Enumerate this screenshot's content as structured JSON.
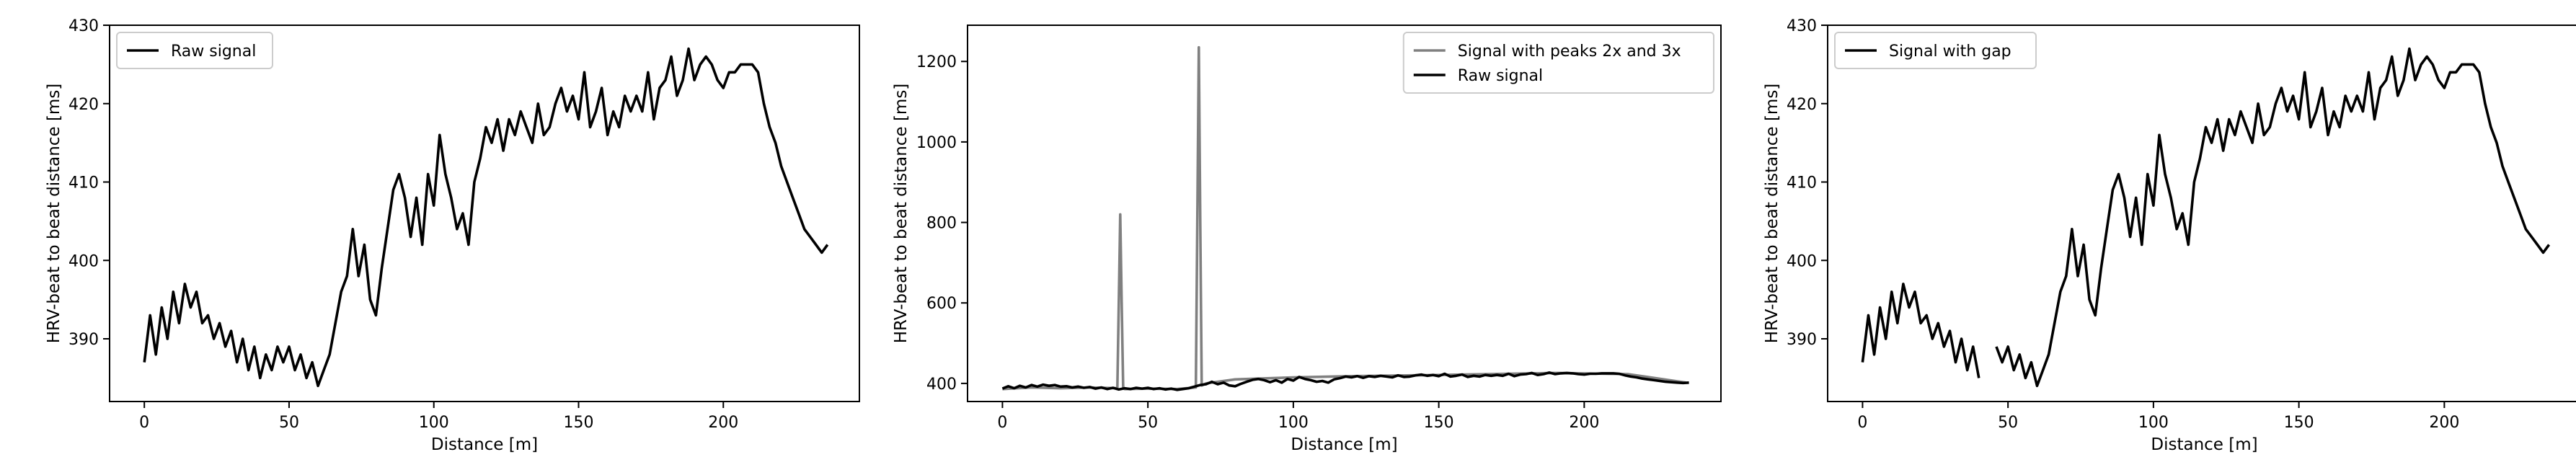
{
  "chart_data": [
    {
      "type": "line",
      "xlabel": "Distance [m]",
      "ylabel": "HRV-beat to beat distance [ms]",
      "xlim": [
        -12,
        247
      ],
      "ylim": [
        382,
        430
      ],
      "xticks": [
        0,
        50,
        100,
        150,
        200
      ],
      "xtick_labels": [
        "0",
        "50",
        "100",
        "150",
        "200"
      ],
      "yticks": [
        390,
        400,
        410,
        420,
        430
      ],
      "ytick_labels": [
        "390",
        "400",
        "410",
        "420",
        "430"
      ],
      "legend": {
        "placement": "upper left",
        "entries": [
          "Raw signal"
        ]
      },
      "series": [
        {
          "name": "Raw signal",
          "color": "#000000",
          "x": [
            0,
            2,
            4,
            6,
            8,
            10,
            12,
            14,
            16,
            18,
            20,
            22,
            24,
            26,
            28,
            30,
            32,
            34,
            36,
            38,
            40,
            42,
            44,
            46,
            48,
            50,
            52,
            54,
            56,
            58,
            60,
            62,
            64,
            66,
            68,
            70,
            72,
            74,
            76,
            78,
            80,
            82,
            84,
            86,
            88,
            90,
            92,
            94,
            96,
            98,
            100,
            102,
            104,
            106,
            108,
            110,
            112,
            114,
            116,
            118,
            120,
            122,
            124,
            126,
            128,
            130,
            132,
            134,
            136,
            138,
            140,
            142,
            144,
            146,
            148,
            150,
            152,
            154,
            156,
            158,
            160,
            162,
            164,
            166,
            168,
            170,
            172,
            174,
            176,
            178,
            180,
            182,
            184,
            186,
            188,
            190,
            192,
            194,
            196,
            198,
            200,
            202,
            204,
            206,
            208,
            210,
            212,
            214,
            216,
            218,
            220,
            222,
            224,
            226,
            228,
            230,
            232,
            234,
            236
          ],
          "values": [
            387,
            393,
            388,
            394,
            390,
            396,
            392,
            397,
            394,
            396,
            392,
            393,
            390,
            392,
            389,
            391,
            387,
            390,
            386,
            389,
            385,
            388,
            386,
            389,
            387,
            389,
            386,
            388,
            385,
            387,
            384,
            386,
            388,
            392,
            396,
            398,
            404,
            398,
            402,
            395,
            393,
            399,
            404,
            409,
            411,
            408,
            403,
            408,
            402,
            411,
            407,
            416,
            411,
            408,
            404,
            406,
            402,
            410,
            413,
            417,
            415,
            418,
            414,
            418,
            416,
            419,
            417,
            415,
            420,
            416,
            417,
            420,
            422,
            419,
            421,
            418,
            424,
            417,
            419,
            422,
            416,
            419,
            417,
            421,
            419,
            421,
            419,
            424,
            418,
            422,
            423,
            426,
            421,
            423,
            427,
            423,
            425,
            426,
            425,
            423,
            422,
            424,
            424,
            425,
            425,
            425,
            424,
            420,
            417,
            415,
            412,
            410,
            408,
            406,
            404,
            403,
            402,
            401,
            402
          ]
        }
      ]
    },
    {
      "type": "line",
      "xlabel": "Distance [m]",
      "ylabel": "HRV-beat to beat distance [ms]",
      "xlim": [
        -12,
        247
      ],
      "ylim": [
        355,
        1290
      ],
      "xticks": [
        0,
        50,
        100,
        150,
        200
      ],
      "xtick_labels": [
        "0",
        "50",
        "100",
        "150",
        "200"
      ],
      "yticks": [
        400,
        600,
        800,
        1000,
        1200
      ],
      "ytick_labels": [
        "400",
        "600",
        "800",
        "1000",
        "1200"
      ],
      "legend": {
        "placement": "upper right",
        "entries": [
          "Signal with peaks 2x and 3x",
          "Raw signal"
        ]
      },
      "series": [
        {
          "name": "Signal with peaks 2x and 3x",
          "color": "#808080",
          "x": [
            0,
            10,
            20,
            30,
            39.5,
            40,
            40.5,
            41,
            41.5,
            42,
            50,
            60,
            66.5,
            67,
            67.5,
            68,
            68.5,
            70,
            80,
            100,
            120,
            150,
            190,
            215,
            235
          ],
          "values": [
            386,
            390,
            388,
            390,
            388,
            600,
            820,
            600,
            388,
            386,
            387,
            386,
            390,
            800,
            1235,
            800,
            395,
            400,
            410,
            415,
            418,
            421,
            426,
            423,
            402
          ]
        },
        {
          "name": "Raw signal",
          "color": "#000000",
          "x": [
            0,
            2,
            4,
            6,
            8,
            10,
            12,
            14,
            16,
            18,
            20,
            22,
            24,
            26,
            28,
            30,
            32,
            34,
            36,
            38,
            40,
            42,
            44,
            46,
            48,
            50,
            52,
            54,
            56,
            58,
            60,
            62,
            64,
            66,
            68,
            70,
            72,
            74,
            76,
            78,
            80,
            82,
            84,
            86,
            88,
            90,
            92,
            94,
            96,
            98,
            100,
            102,
            104,
            106,
            108,
            110,
            112,
            114,
            116,
            118,
            120,
            122,
            124,
            126,
            128,
            130,
            132,
            134,
            136,
            138,
            140,
            142,
            144,
            146,
            148,
            150,
            152,
            154,
            156,
            158,
            160,
            162,
            164,
            166,
            168,
            170,
            172,
            174,
            176,
            178,
            180,
            182,
            184,
            186,
            188,
            190,
            192,
            194,
            196,
            198,
            200,
            202,
            204,
            206,
            208,
            210,
            212,
            214,
            216,
            218,
            220,
            222,
            224,
            226,
            228,
            230,
            232,
            234,
            236
          ],
          "values": [
            387,
            393,
            388,
            394,
            390,
            396,
            392,
            397,
            394,
            396,
            392,
            393,
            390,
            392,
            389,
            391,
            387,
            390,
            386,
            389,
            385,
            388,
            386,
            389,
            387,
            389,
            386,
            388,
            385,
            387,
            384,
            386,
            388,
            392,
            396,
            398,
            404,
            398,
            402,
            395,
            393,
            399,
            404,
            409,
            411,
            408,
            403,
            408,
            402,
            411,
            407,
            416,
            411,
            408,
            404,
            406,
            402,
            410,
            413,
            417,
            415,
            418,
            414,
            418,
            416,
            419,
            417,
            415,
            420,
            416,
            417,
            420,
            422,
            419,
            421,
            418,
            424,
            417,
            419,
            422,
            416,
            419,
            417,
            421,
            419,
            421,
            419,
            424,
            418,
            422,
            423,
            426,
            421,
            423,
            427,
            423,
            425,
            426,
            425,
            423,
            422,
            424,
            424,
            425,
            425,
            425,
            424,
            420,
            417,
            415,
            412,
            410,
            408,
            406,
            404,
            403,
            402,
            401,
            402
          ]
        }
      ]
    },
    {
      "type": "line",
      "xlabel": "Distance [m]",
      "ylabel": "HRV-beat to beat distance [ms]",
      "xlim": [
        -12,
        247
      ],
      "ylim": [
        382,
        430
      ],
      "xticks": [
        0,
        50,
        100,
        150,
        200
      ],
      "xtick_labels": [
        "0",
        "50",
        "100",
        "150",
        "200"
      ],
      "yticks": [
        390,
        400,
        410,
        420,
        430
      ],
      "ytick_labels": [
        "390",
        "400",
        "410",
        "420",
        "430"
      ],
      "legend": {
        "placement": "upper left",
        "entries": [
          "Signal with gap"
        ]
      },
      "series": [
        {
          "name": "Signal with gap",
          "color": "#000000",
          "x": [
            0,
            2,
            4,
            6,
            8,
            10,
            12,
            14,
            16,
            18,
            20,
            22,
            24,
            26,
            28,
            30,
            32,
            34,
            36,
            38,
            40,
            null,
            46,
            48,
            50,
            52,
            54,
            56,
            58,
            60,
            62,
            64,
            66,
            68,
            70,
            72,
            74,
            76,
            78,
            80,
            82,
            84,
            86,
            88,
            90,
            92,
            94,
            96,
            98,
            100,
            102,
            104,
            106,
            108,
            110,
            112,
            114,
            116,
            118,
            120,
            122,
            124,
            126,
            128,
            130,
            132,
            134,
            136,
            138,
            140,
            142,
            144,
            146,
            148,
            150,
            152,
            154,
            156,
            158,
            160,
            162,
            164,
            166,
            168,
            170,
            172,
            174,
            176,
            178,
            180,
            182,
            184,
            186,
            188,
            190,
            192,
            194,
            196,
            198,
            200,
            202,
            204,
            206,
            208,
            210,
            212,
            214,
            216,
            218,
            220,
            222,
            224,
            226,
            228,
            230,
            232,
            234,
            236
          ],
          "values": [
            387,
            393,
            388,
            394,
            390,
            396,
            392,
            397,
            394,
            396,
            392,
            393,
            390,
            392,
            389,
            391,
            387,
            390,
            386,
            389,
            385,
            null,
            389,
            387,
            389,
            386,
            388,
            385,
            387,
            384,
            386,
            388,
            392,
            396,
            398,
            404,
            398,
            402,
            395,
            393,
            399,
            404,
            409,
            411,
            408,
            403,
            408,
            402,
            411,
            407,
            416,
            411,
            408,
            404,
            406,
            402,
            410,
            413,
            417,
            415,
            418,
            414,
            418,
            416,
            419,
            417,
            415,
            420,
            416,
            417,
            420,
            422,
            419,
            421,
            418,
            424,
            417,
            419,
            422,
            416,
            419,
            417,
            421,
            419,
            421,
            419,
            424,
            418,
            422,
            423,
            426,
            421,
            423,
            427,
            423,
            425,
            426,
            425,
            423,
            422,
            424,
            424,
            425,
            425,
            425,
            424,
            420,
            417,
            415,
            412,
            410,
            408,
            406,
            404,
            403,
            402,
            401,
            402
          ]
        }
      ]
    }
  ]
}
